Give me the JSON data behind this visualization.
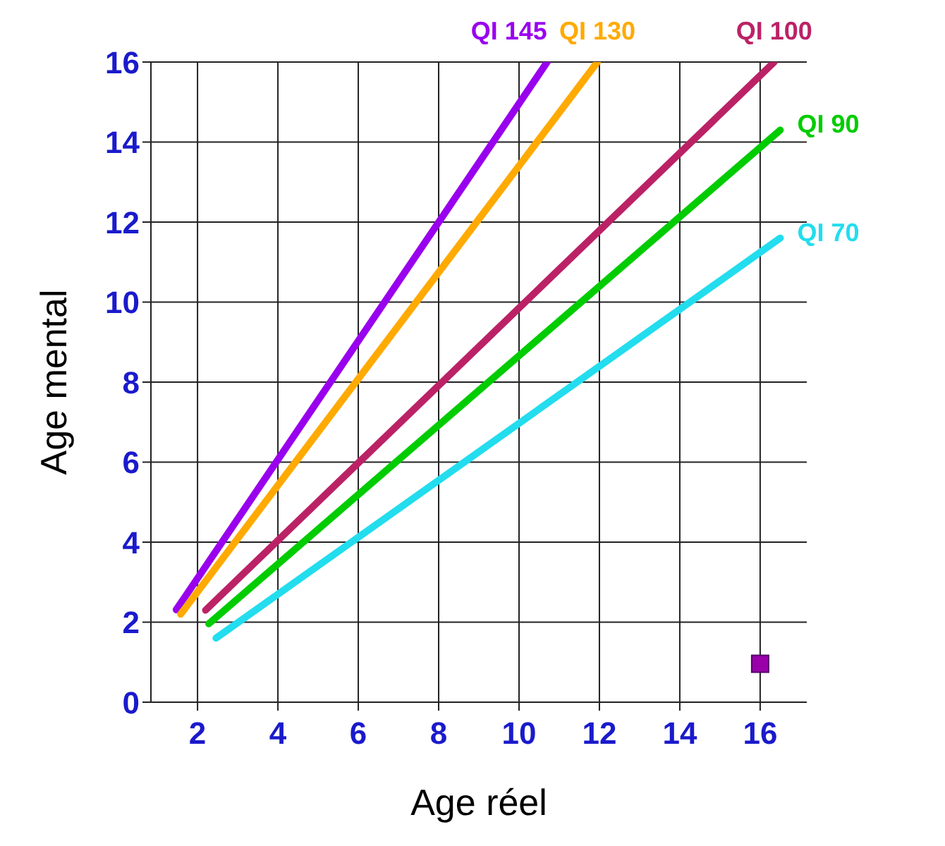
{
  "chart_data": {
    "type": "line",
    "xlabel": "Age réel",
    "ylabel": "Age mental",
    "xlim": [
      0.84,
      17.16
    ],
    "ylim": [
      0,
      16
    ],
    "xticks": [
      2,
      4,
      6,
      8,
      10,
      12,
      14,
      16
    ],
    "yticks": [
      0,
      2,
      4,
      6,
      8,
      10,
      12,
      14,
      16
    ],
    "grid": true,
    "marker": "none",
    "line_style": "solid",
    "series": [
      {
        "name": "QI 145",
        "color": "#9900ee",
        "x": [
          1.47,
          10.7
        ],
        "values": [
          2.31,
          16
        ]
      },
      {
        "name": "QI 130",
        "color": "#ffaa00",
        "x": [
          1.58,
          11.95
        ],
        "values": [
          2.2,
          16
        ]
      },
      {
        "name": "QI 100",
        "color": "#bb2266",
        "x": [
          2.2,
          16.35
        ],
        "values": [
          2.3,
          16
        ]
      },
      {
        "name": "QI 90",
        "color": "#00cc00",
        "x": [
          2.28,
          16.5
        ],
        "values": [
          1.96,
          14.3
        ]
      },
      {
        "name": "QI 70",
        "color": "#22ddee",
        "x": [
          2.46,
          16.5
        ],
        "values": [
          1.6,
          11.6
        ]
      },
      {
        "type": "scatter",
        "marker": "square",
        "color": "#9900aa",
        "x": [
          16
        ],
        "values": [
          0.96
        ]
      }
    ]
  }
}
